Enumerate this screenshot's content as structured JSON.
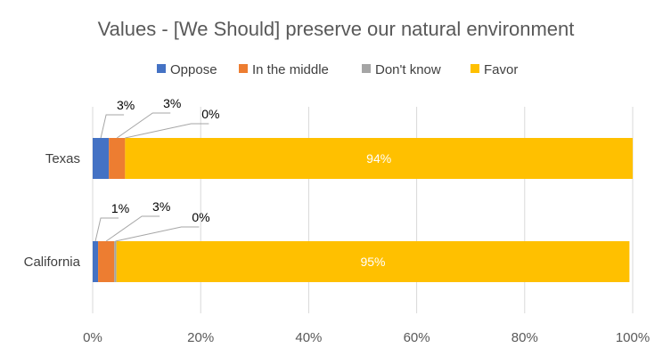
{
  "chart_data": {
    "type": "bar",
    "orientation": "horizontal",
    "stacked": true,
    "title": "Values - [We Should] preserve our natural environment",
    "categories": [
      "Texas",
      "California"
    ],
    "series": [
      {
        "name": "Oppose",
        "color": "#4472C4",
        "values": [
          0.03,
          0.01
        ],
        "labels": [
          "3%",
          "1%"
        ]
      },
      {
        "name": "In the middle",
        "color": "#ED7D31",
        "values": [
          0.03,
          0.03
        ],
        "labels": [
          "3%",
          "3%"
        ]
      },
      {
        "name": "Don't know",
        "color": "#A5A5A5",
        "values": [
          0.0,
          0.004
        ],
        "labels": [
          "0%",
          "0%"
        ]
      },
      {
        "name": "Favor",
        "color": "#FFC000",
        "values": [
          0.94,
          0.95
        ],
        "labels": [
          "94%",
          "95%"
        ]
      }
    ],
    "xlim": [
      0,
      1
    ],
    "x_ticks": [
      "0%",
      "20%",
      "40%",
      "60%",
      "80%",
      "100%"
    ],
    "grid": true,
    "legend_position": "top"
  }
}
